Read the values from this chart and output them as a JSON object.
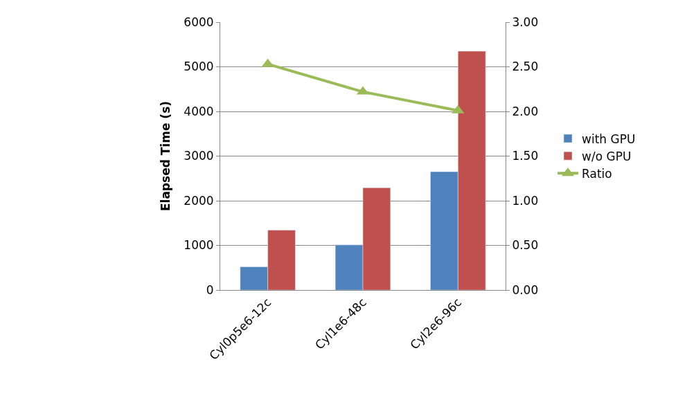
{
  "chart_data": {
    "type": "bar",
    "ylabel": "Elapsed Time (s)",
    "categories": [
      "Cyl0p5e6-12c",
      "Cyl1e6-48c",
      "Cyl2e6-96c"
    ],
    "series": [
      {
        "name": "with GPU",
        "color": "#4f81bd",
        "values": [
          520,
          1010,
          2650
        ]
      },
      {
        "name": "w/o GPU",
        "color": "#c0504d",
        "values": [
          1340,
          2290,
          5350
        ]
      },
      {
        "name": "Ratio",
        "type": "line",
        "axis": "y2",
        "color": "#9bbb59",
        "marker": "triangle",
        "values": [
          2.53,
          2.22,
          2.01
        ]
      }
    ],
    "ylim": [
      0,
      6000
    ],
    "yticks": [
      0,
      1000,
      2000,
      3000,
      4000,
      5000,
      6000
    ],
    "y2lim": [
      0,
      3
    ],
    "y2ticks": [
      {
        "value": 0,
        "label": "0.00"
      },
      {
        "value": 0.5,
        "label": "0.50"
      },
      {
        "value": 1,
        "label": "1.00"
      },
      {
        "value": 1.5,
        "label": "1.50"
      },
      {
        "value": 2,
        "label": "2.00"
      },
      {
        "value": 2.5,
        "label": "2.50"
      },
      {
        "value": 3,
        "label": "3.00"
      }
    ],
    "grid": "y",
    "legend": "right"
  }
}
